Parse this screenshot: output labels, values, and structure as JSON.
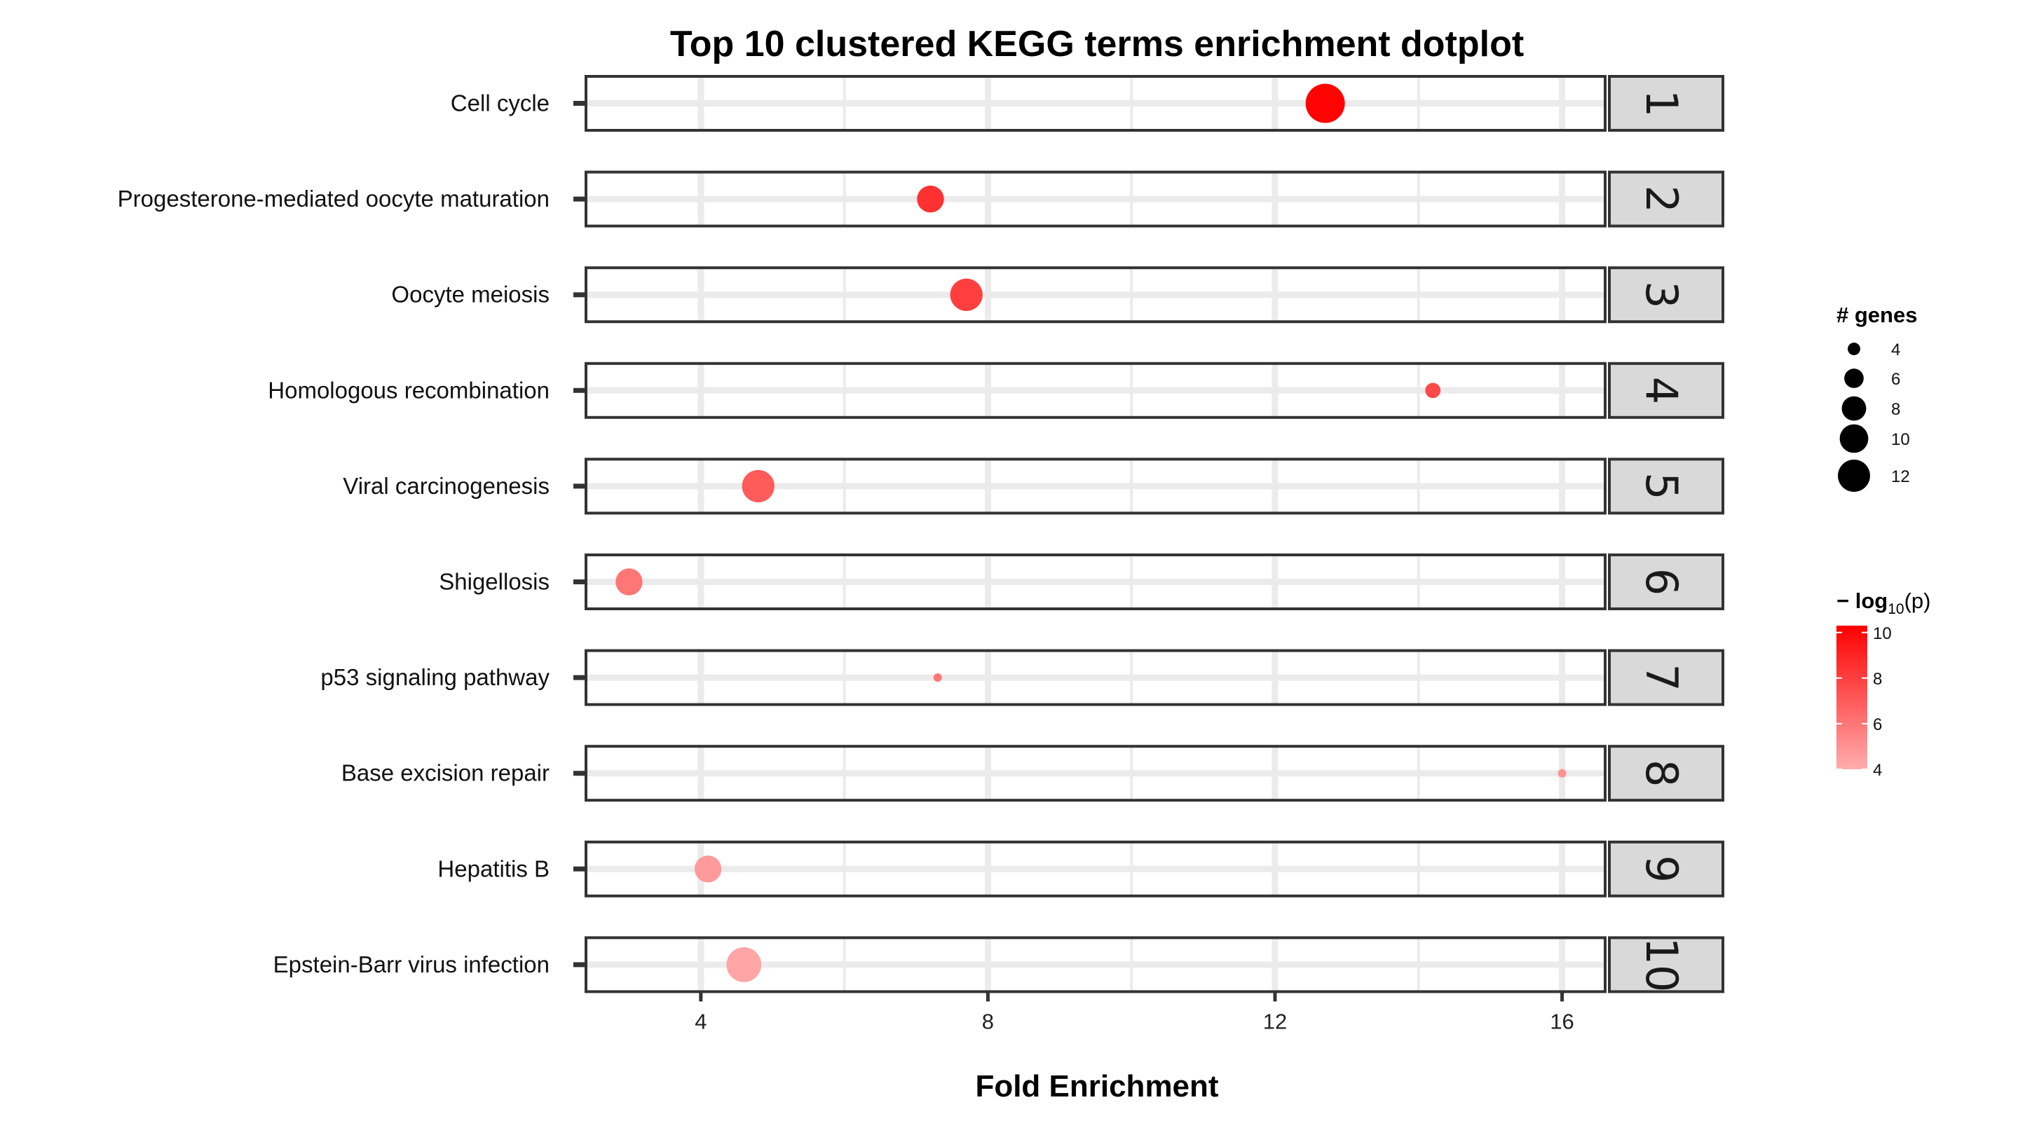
{
  "chart_data": {
    "type": "scatter",
    "title": "Top 10 clustered KEGG terms enrichment dotplot",
    "xlabel": "Fold Enrichment",
    "xlim": [
      2.4,
      16.6
    ],
    "xticks": [
      4,
      8,
      12,
      16
    ],
    "grid": true,
    "legend_position": "right",
    "color_low": "#FFADAD",
    "color_high": "#FF0000",
    "rows": [
      {
        "term": "Cell cycle",
        "cluster": "1",
        "fold_enrichment": 12.7,
        "genes": 12,
        "neglog10p": 10.2
      },
      {
        "term": "Progesterone-mediated oocyte maturation",
        "cluster": "2",
        "fold_enrichment": 7.2,
        "genes": 7,
        "neglog10p": 8.5
      },
      {
        "term": "Oocyte meiosis",
        "cluster": "3",
        "fold_enrichment": 7.7,
        "genes": 9,
        "neglog10p": 8.0
      },
      {
        "term": "Homologous recombination",
        "cluster": "4",
        "fold_enrichment": 14.2,
        "genes": 4,
        "neglog10p": 7.6
      },
      {
        "term": "Viral carcinogenesis",
        "cluster": "5",
        "fold_enrichment": 4.8,
        "genes": 9,
        "neglog10p": 7.0
      },
      {
        "term": "Shigellosis",
        "cluster": "6",
        "fold_enrichment": 3.0,
        "genes": 7,
        "neglog10p": 6.0
      },
      {
        "term": "p53 signaling pathway",
        "cluster": "7",
        "fold_enrichment": 7.3,
        "genes": 3,
        "neglog10p": 6.0
      },
      {
        "term": "Base excision repair",
        "cluster": "8",
        "fold_enrichment": 16.0,
        "genes": 3,
        "neglog10p": 5.0
      },
      {
        "term": "Hepatitis B",
        "cluster": "9",
        "fold_enrichment": 4.1,
        "genes": 7,
        "neglog10p": 4.7
      },
      {
        "term": "Epstein-Barr virus infection",
        "cluster": "10",
        "fold_enrichment": 4.6,
        "genes": 10,
        "neglog10p": 4.3
      }
    ],
    "size_legend": {
      "title": "# genes",
      "values": [
        4,
        6,
        8,
        10,
        12
      ],
      "labels": [
        "4",
        "6",
        "8",
        "10",
        "12"
      ]
    },
    "color_legend": {
      "title_prefix": "− log",
      "title_sub": "10",
      "title_suffix": "(p)",
      "range": [
        4,
        10.3
      ],
      "ticks": [
        4,
        6,
        8,
        10
      ],
      "labels": [
        "4",
        "6",
        "8",
        "10"
      ]
    }
  }
}
